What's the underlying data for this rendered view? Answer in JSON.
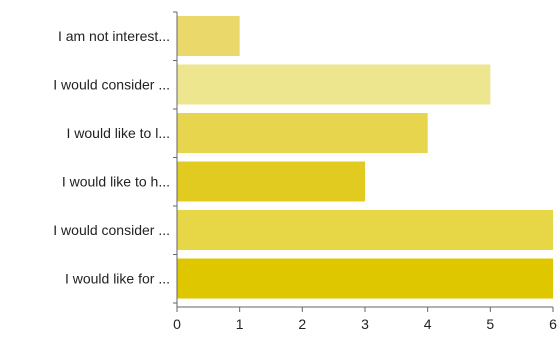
{
  "chart_data": {
    "type": "bar",
    "orientation": "horizontal",
    "categories": [
      "I am not interest...",
      "I would consider ...",
      "I would like to l...",
      "I would like to h...",
      "I would consider ...",
      "I would like for ..."
    ],
    "values": [
      1,
      5,
      4,
      3,
      6,
      6
    ],
    "xlim": [
      0,
      6
    ],
    "x_ticks": [
      "0",
      "1",
      "2",
      "3",
      "4",
      "5",
      "6"
    ],
    "grid": false,
    "legend": "none",
    "colors": [
      "#ead96a",
      "#ede68e",
      "#e7d54d",
      "#e2cb21",
      "#e7d746",
      "#dfc700"
    ],
    "axis_color": "#666666"
  }
}
